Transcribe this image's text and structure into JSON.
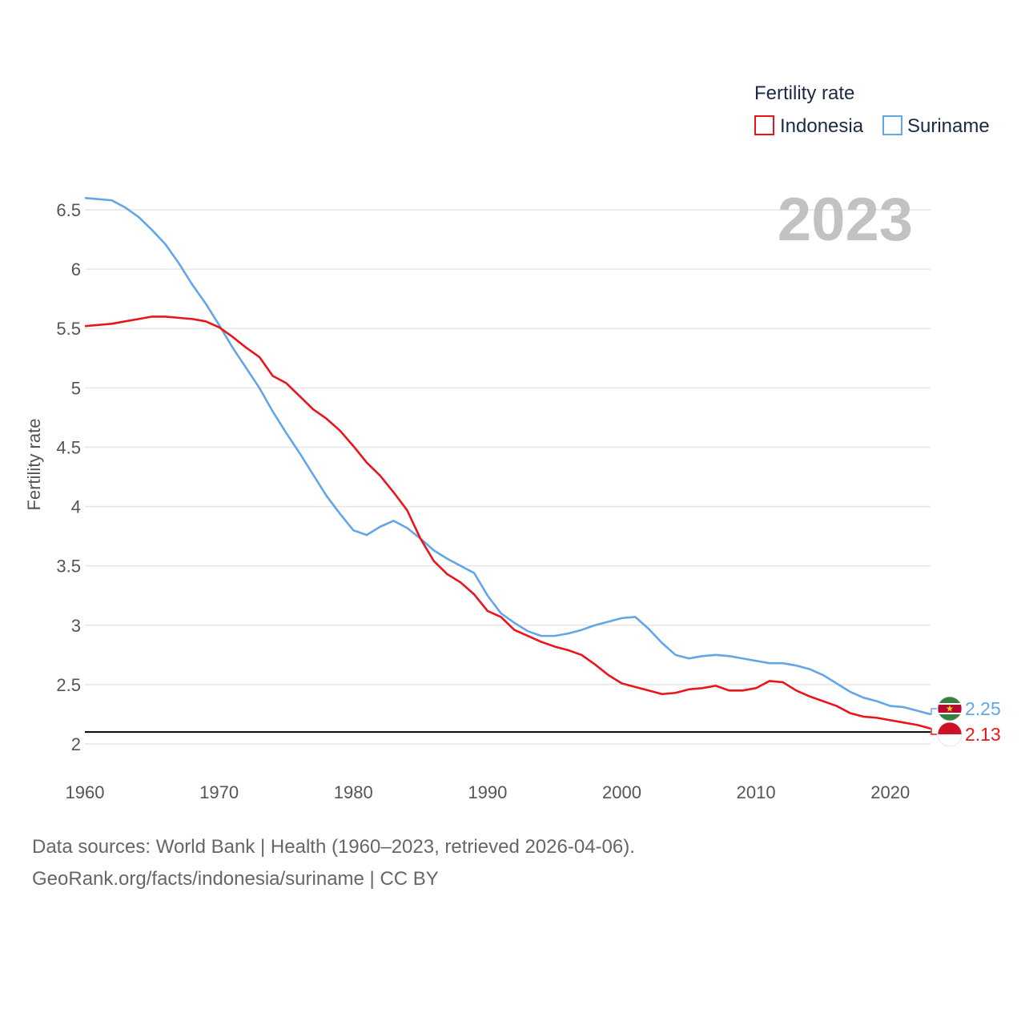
{
  "chart_data": {
    "type": "line",
    "title": "",
    "ylabel": "Fertility rate",
    "xlabel": "",
    "xlim": [
      1960,
      2023
    ],
    "ylim": [
      1.85,
      6.65
    ],
    "yticks": [
      2,
      2.5,
      3,
      3.5,
      4,
      4.5,
      5,
      5.5,
      6,
      6.5
    ],
    "xticks": [
      1960,
      1970,
      1980,
      1990,
      2000,
      2010,
      2020
    ],
    "ytick_labels": [
      "2",
      "2.5",
      "3",
      "3.5",
      "4",
      "4.5",
      "5",
      "5.5",
      "6",
      "6.5"
    ],
    "xtick_labels": [
      "1960",
      "1970",
      "1980",
      "1990",
      "2000",
      "2010",
      "2020"
    ],
    "year_display": "2023",
    "reference_line": 2.1,
    "legend": {
      "title": "Fertility rate",
      "placement": "top-right"
    },
    "x": [
      1960,
      1961,
      1962,
      1963,
      1964,
      1965,
      1966,
      1967,
      1968,
      1969,
      1970,
      1971,
      1972,
      1973,
      1974,
      1975,
      1976,
      1977,
      1978,
      1979,
      1980,
      1981,
      1982,
      1983,
      1984,
      1985,
      1986,
      1987,
      1988,
      1989,
      1990,
      1991,
      1992,
      1993,
      1994,
      1995,
      1996,
      1997,
      1998,
      1999,
      2000,
      2001,
      2002,
      2003,
      2004,
      2005,
      2006,
      2007,
      2008,
      2009,
      2010,
      2011,
      2012,
      2013,
      2014,
      2015,
      2016,
      2017,
      2018,
      2019,
      2020,
      2021,
      2022,
      2023
    ],
    "series": [
      {
        "name": "Indonesia",
        "color": "#e8161b",
        "end_label": "2.13",
        "values": [
          5.52,
          5.53,
          5.54,
          5.56,
          5.58,
          5.6,
          5.6,
          5.59,
          5.58,
          5.56,
          5.51,
          5.43,
          5.34,
          5.26,
          5.1,
          5.04,
          4.93,
          4.82,
          4.74,
          4.64,
          4.51,
          4.37,
          4.26,
          4.12,
          3.97,
          3.73,
          3.54,
          3.43,
          3.36,
          3.26,
          3.12,
          3.07,
          2.96,
          2.91,
          2.86,
          2.82,
          2.79,
          2.75,
          2.67,
          2.58,
          2.51,
          2.48,
          2.45,
          2.42,
          2.43,
          2.46,
          2.47,
          2.49,
          2.45,
          2.45,
          2.47,
          2.53,
          2.52,
          2.45,
          2.4,
          2.36,
          2.32,
          2.26,
          2.23,
          2.22,
          2.2,
          2.18,
          2.16,
          2.13
        ]
      },
      {
        "name": "Suriname",
        "color": "#63a6e8",
        "end_label": "2.25",
        "values": [
          6.6,
          6.59,
          6.58,
          6.52,
          6.44,
          6.33,
          6.21,
          6.05,
          5.87,
          5.71,
          5.53,
          5.34,
          5.17,
          5.0,
          4.8,
          4.62,
          4.45,
          4.27,
          4.09,
          3.94,
          3.8,
          3.76,
          3.83,
          3.88,
          3.82,
          3.73,
          3.63,
          3.56,
          3.5,
          3.44,
          3.25,
          3.1,
          3.02,
          2.95,
          2.91,
          2.91,
          2.93,
          2.96,
          3.0,
          3.03,
          3.06,
          3.07,
          2.97,
          2.85,
          2.75,
          2.72,
          2.74,
          2.75,
          2.74,
          2.72,
          2.7,
          2.68,
          2.68,
          2.66,
          2.63,
          2.58,
          2.51,
          2.44,
          2.39,
          2.36,
          2.32,
          2.31,
          2.28,
          2.25
        ]
      }
    ]
  },
  "source": {
    "line1": "Data sources: World Bank | Health (1960–2023, retrieved 2026-04-06).",
    "line2": "GeoRank.org/facts/indonesia/suriname | CC BY"
  },
  "flags": {
    "suriname": [
      "#377e3f",
      "#ffffff",
      "#b40a2d",
      "#ecc81d"
    ],
    "indonesia": [
      "#ce1126",
      "#ffffff"
    ]
  }
}
